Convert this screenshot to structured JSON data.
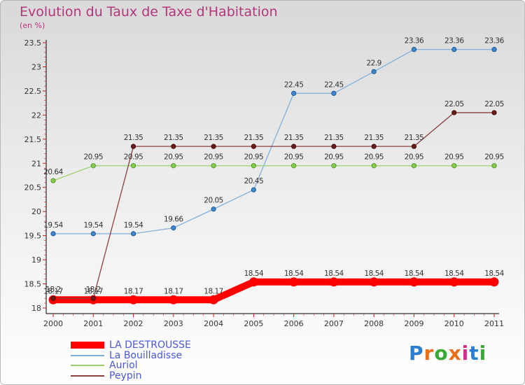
{
  "header": {
    "title": "Evolution du Taux de Taxe d'Habitation",
    "unit": "(en %)"
  },
  "logo": {
    "text": "Proxiti",
    "colors": [
      "#2a7fd4",
      "#e8701a",
      "#39a935",
      "#e8701a",
      "#d92b8a",
      "#2a7fd4",
      "#39a935"
    ]
  },
  "chart_data": {
    "type": "line",
    "title": "Evolution du Taux de Taxe d'Habitation",
    "ylabel": "(en %)",
    "xlabel": "",
    "x": [
      "2000",
      "2001",
      "2002",
      "2003",
      "2004",
      "2005",
      "2006",
      "2007",
      "2008",
      "2009",
      "2010",
      "2011"
    ],
    "ylim": [
      18,
      23.5
    ],
    "yticks": [
      "18",
      "18.5",
      "19",
      "19.5",
      "20",
      "20.5",
      "21",
      "21.5",
      "22",
      "22.5",
      "23",
      "23.5"
    ],
    "grid": false,
    "legend_position": "bottom-left",
    "series": [
      {
        "name": "LA DESTROUSSE",
        "color": "#ff0000",
        "values": [
          18.17,
          18.17,
          18.17,
          18.17,
          18.17,
          18.54,
          18.54,
          18.54,
          18.54,
          18.54,
          18.54,
          18.54
        ],
        "labels": [
          "18.17",
          "18.17",
          "18.17",
          "18.17",
          "18.17",
          "18.54",
          "18.54",
          "18.54",
          "18.54",
          "18.54",
          "18.54",
          "18.54"
        ]
      },
      {
        "name": "La Bouilladisse",
        "color": "#4a8ed0",
        "values": [
          19.54,
          19.54,
          19.54,
          19.66,
          20.05,
          20.45,
          22.45,
          22.45,
          22.9,
          23.36,
          23.36,
          23.36
        ],
        "labels": [
          "19.54",
          "19.54",
          "19.54",
          "19.66",
          "20.05",
          "20.45",
          "22.45",
          "22.45",
          "22.9",
          "23.36",
          "23.36",
          "23.36"
        ]
      },
      {
        "name": "Auriol",
        "color": "#8fd45a",
        "values": [
          20.64,
          20.95,
          20.95,
          20.95,
          20.95,
          20.95,
          20.95,
          20.95,
          20.95,
          20.95,
          20.95,
          20.95
        ],
        "labels": [
          "20.64",
          "20.95",
          "20.95",
          "20.95",
          "20.95",
          "20.95",
          "20.95",
          "20.95",
          "20.95",
          "20.95",
          "20.95",
          "20.95"
        ]
      },
      {
        "name": "Peypin",
        "color": "#7a2a2a",
        "values": [
          18.2,
          18.2,
          21.35,
          21.35,
          21.35,
          21.35,
          21.35,
          21.35,
          21.35,
          21.35,
          22.05,
          22.05
        ],
        "labels": [
          "18.2",
          "18.2",
          "21.35",
          "21.35",
          "21.35",
          "21.35",
          "21.35",
          "21.35",
          "21.35",
          "21.35",
          "22.05",
          "22.05"
        ]
      }
    ]
  }
}
